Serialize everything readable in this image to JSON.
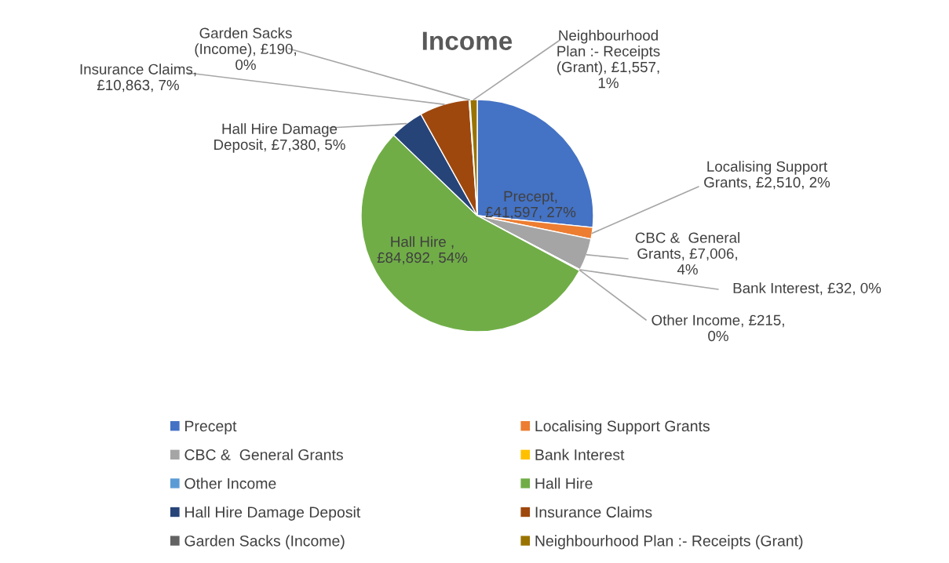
{
  "chart_data": {
    "type": "pie",
    "title": "Income",
    "categories": [
      "Precept",
      "Localising Support Grants",
      "CBC &  General Grants",
      "Bank Interest",
      "Other Income",
      "Hall Hire",
      "Hall Hire Damage Deposit",
      "Insurance Claims",
      "Garden Sacks (Income)",
      "Neighbourhood Plan :- Receipts (Grant)"
    ],
    "values": [
      41597,
      2510,
      7006,
      32,
      215,
      84892,
      7380,
      10863,
      190,
      1557
    ],
    "colors": [
      "#4472c4",
      "#ed7d31",
      "#a5a5a5",
      "#ffc000",
      "#5b9bd5",
      "#70ad47",
      "#264478",
      "#9e480e",
      "#636363",
      "#997300"
    ],
    "value_labels": [
      "Precept,\n£41,597, 27%",
      "Localising Support\nGrants, £2,510, 2%",
      "CBC &  General\nGrants, £7,006,\n4%",
      "Bank Interest, £32, 0%",
      "Other Income, £215,\n0%",
      "Hall Hire ,\n£84,892, 54%",
      "Hall Hire Damage\nDeposit, £7,380, 5%",
      "Insurance Claims,\n£10,863, 7%",
      "Garden Sacks\n(Income), £190,\n0%",
      "Neighbourhood\nPlan :- Receipts\n(Grant), £1,557,\n1%"
    ],
    "legend": "bottom"
  }
}
